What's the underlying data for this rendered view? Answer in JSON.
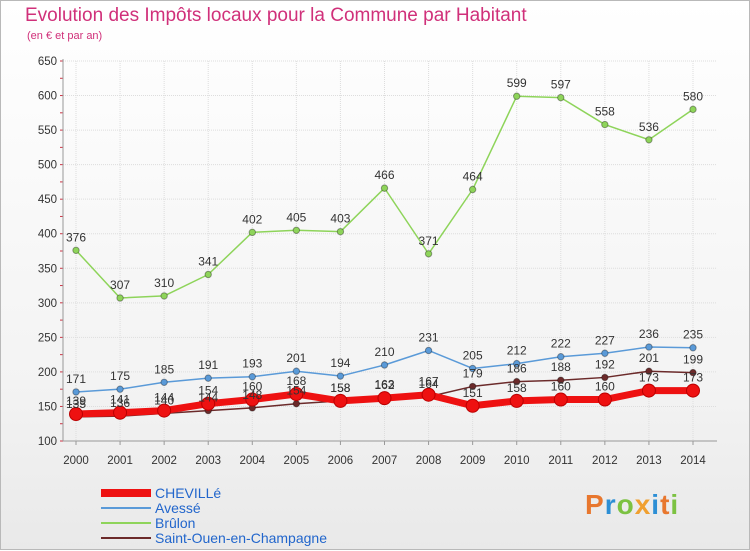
{
  "title": "Evolution des Impôts locaux pour la Commune par Habitant",
  "subtitle": "(en € et par an)",
  "brand": {
    "text": "Proxiti",
    "colors": [
      "#e8772e",
      "#2d8fd5",
      "#7cc242",
      "#f0a030",
      "#2d8fd5",
      "#e8772e",
      "#7cc242"
    ]
  },
  "chart_data": {
    "type": "line",
    "x": [
      "2000",
      "2001",
      "2002",
      "2003",
      "2004",
      "2005",
      "2006",
      "2007",
      "2008",
      "2009",
      "2010",
      "2011",
      "2012",
      "2013",
      "2014"
    ],
    "ylim": [
      100,
      650
    ],
    "yticks": [
      "100",
      "150",
      "200",
      "250",
      "300",
      "350",
      "400",
      "450",
      "500",
      "550",
      "600",
      "650"
    ],
    "grid": true,
    "legend_position": "bottom-left",
    "series": [
      {
        "name": "CHEVILLé",
        "color": "#ee1111",
        "values": [
          139,
          141,
          144,
          154,
          160,
          168,
          158,
          162,
          167,
          151,
          158,
          160,
          160,
          173,
          173
        ]
      },
      {
        "name": "Avessé",
        "color": "#5a9ad8",
        "values": [
          171,
          175,
          185,
          191,
          193,
          201,
          194,
          210,
          231,
          205,
          212,
          222,
          227,
          236,
          235
        ]
      },
      {
        "name": "Brûlon",
        "color": "#8ed45a",
        "values": [
          376,
          307,
          310,
          341,
          402,
          405,
          403,
          466,
          371,
          464,
          599,
          597,
          558,
          536,
          580
        ]
      },
      {
        "name": "Saint-Ouen-en-Champagne",
        "color": "#6b2a2a",
        "values": [
          135,
          136,
          140,
          144,
          148,
          154,
          158,
          163,
          164,
          179,
          186,
          188,
          192,
          201,
          199
        ]
      }
    ]
  }
}
